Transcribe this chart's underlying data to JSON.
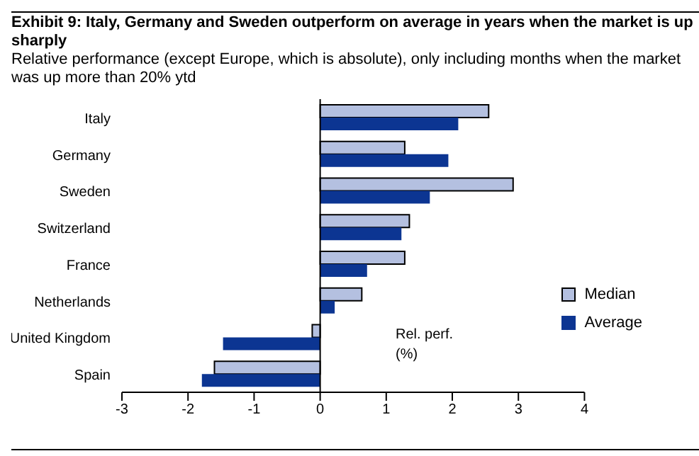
{
  "chart_data": {
    "type": "bar",
    "orientation": "horizontal",
    "title": "Exhibit 9: Italy, Germany and Sweden outperform on average in years when the market is up sharply",
    "subtitle": "Relative performance (except Europe, which is absolute), only including months when the market was up more than 20% ytd",
    "xlabel": "Rel. perf. (%)",
    "categories": [
      "Italy",
      "Germany",
      "Sweden",
      "Switzerland",
      "France",
      "Netherlands",
      "United Kingdom",
      "Spain"
    ],
    "series": [
      {
        "name": "Median",
        "color": "#b4c0e0",
        "values": [
          2.55,
          1.28,
          2.92,
          1.35,
          1.28,
          0.63,
          -0.12,
          -1.6
        ]
      },
      {
        "name": "Average",
        "color": "#0c3592",
        "values": [
          2.09,
          1.94,
          1.66,
          1.23,
          0.71,
          0.22,
          -1.47,
          -1.79
        ]
      }
    ],
    "xlim": [
      -3,
      4
    ],
    "xticks": [
      -3,
      -2,
      -1,
      0,
      1,
      2,
      3,
      4
    ],
    "legend": "right"
  }
}
